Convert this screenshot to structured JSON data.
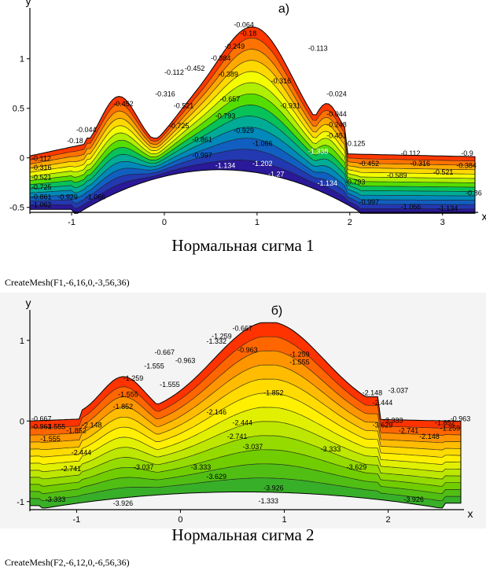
{
  "chart_data": [
    {
      "type": "heatmap",
      "panel_label": "а)",
      "title": "Нормальная сигма 1",
      "xlabel": "x",
      "ylabel": "y",
      "xlim": [
        -1.45,
        3.35
      ],
      "ylim": [
        -0.55,
        1.45
      ],
      "xticks": [
        -1,
        0,
        1,
        2,
        3
      ],
      "yticks": [
        -0.5,
        0,
        0.5,
        1
      ],
      "ytick_labels": [
        "-0.5",
        "0",
        "0.5",
        "1"
      ],
      "color_low": "#2a0a8a",
      "color_high": "#ff1a00",
      "value_range": [
        -1.338,
        0.024
      ],
      "contour_labels": [
        {
          "text": "-0.064",
          "x": 0.75,
          "y": 1.32
        },
        {
          "text": "-0.18",
          "x": 0.82,
          "y": 1.23
        },
        {
          "text": "-0.249",
          "x": 0.65,
          "y": 1.1
        },
        {
          "text": "-0.384",
          "x": 0.5,
          "y": 0.98
        },
        {
          "text": "-0.452",
          "x": 0.22,
          "y": 0.88
        },
        {
          "text": "-0.112",
          "x": 0.0,
          "y": 0.84
        },
        {
          "text": "-0.389",
          "x": 0.58,
          "y": 0.82
        },
        {
          "text": "-0.113",
          "x": 1.55,
          "y": 1.08
        },
        {
          "text": "-0.316",
          "x": 1.15,
          "y": 0.75
        },
        {
          "text": "-0.316",
          "x": -0.1,
          "y": 0.62
        },
        {
          "text": "-0.657",
          "x": 0.6,
          "y": 0.57
        },
        {
          "text": "-0.521",
          "x": 0.1,
          "y": 0.5
        },
        {
          "text": "-0.931",
          "x": 1.25,
          "y": 0.5
        },
        {
          "text": "-0.024",
          "x": 1.75,
          "y": 0.62
        },
        {
          "text": "-0.452",
          "x": -0.55,
          "y": 0.52
        },
        {
          "text": "-0.793",
          "x": 0.55,
          "y": 0.4
        },
        {
          "text": "-0.725",
          "x": 0.05,
          "y": 0.3
        },
        {
          "text": "-0.044",
          "x": 1.75,
          "y": 0.42
        },
        {
          "text": "-0.248",
          "x": 1.75,
          "y": 0.31
        },
        {
          "text": "-0.929",
          "x": 0.75,
          "y": 0.25
        },
        {
          "text": "-0.861",
          "x": 0.3,
          "y": 0.16
        },
        {
          "text": "-0.044",
          "x": -0.95,
          "y": 0.26
        },
        {
          "text": "-0.18",
          "x": -1.05,
          "y": 0.15
        },
        {
          "text": "-1.066",
          "x": 0.95,
          "y": 0.12
        },
        {
          "text": "-0.451",
          "x": 1.75,
          "y": 0.2
        },
        {
          "text": "-0.997",
          "x": 0.3,
          "y": 0.0
        },
        {
          "text": "-1.338",
          "x": 1.55,
          "y": 0.04
        },
        {
          "text": "-0.125",
          "x": 1.95,
          "y": 0.12
        },
        {
          "text": "-1.134",
          "x": 0.55,
          "y": -0.1
        },
        {
          "text": "-1.202",
          "x": 0.95,
          "y": -0.08
        },
        {
          "text": "-1.27",
          "x": 1.12,
          "y": -0.19
        },
        {
          "text": "-1.134",
          "x": 1.65,
          "y": -0.28
        },
        {
          "text": "-0.112",
          "x": -1.45,
          "y": -0.03
        },
        {
          "text": "-0.316",
          "x": -1.45,
          "y": -0.12
        },
        {
          "text": "-0.521",
          "x": -1.45,
          "y": -0.22
        },
        {
          "text": "-0.725",
          "x": -1.45,
          "y": -0.32
        },
        {
          "text": "-0.861",
          "x": -1.45,
          "y": -0.42
        },
        {
          "text": "-1.062",
          "x": -1.45,
          "y": -0.5
        },
        {
          "text": "-0.929",
          "x": -1.15,
          "y": -0.42
        },
        {
          "text": "-1.066",
          "x": -0.85,
          "y": -0.42
        },
        {
          "text": "-0.112",
          "x": 2.55,
          "y": 0.02
        },
        {
          "text": "-0.316",
          "x": 2.65,
          "y": -0.08
        },
        {
          "text": "-0.452",
          "x": 2.1,
          "y": -0.08
        },
        {
          "text": "-0.521",
          "x": 2.9,
          "y": -0.17
        },
        {
          "text": "-0.589",
          "x": 2.4,
          "y": -0.2
        },
        {
          "text": "-0.793",
          "x": 1.95,
          "y": -0.27
        },
        {
          "text": "-0.384",
          "x": 3.15,
          "y": -0.1
        },
        {
          "text": "-0.9",
          "x": 3.2,
          "y": 0.02
        },
        {
          "text": "-0.997",
          "x": 2.1,
          "y": -0.47
        },
        {
          "text": "-1.066",
          "x": 2.55,
          "y": -0.52
        },
        {
          "text": "-1.134",
          "x": 2.95,
          "y": -0.56
        },
        {
          "text": "-0.86",
          "x": 3.25,
          "y": -0.38
        }
      ]
    },
    {
      "type": "heatmap",
      "panel_label": "б)",
      "title": "Нормальная  сигма 2",
      "xlabel": "x",
      "ylabel": "y",
      "xlim": [
        -1.45,
        2.7
      ],
      "ylim": [
        -1.1,
        1.3
      ],
      "xticks": [
        -1,
        0,
        1,
        2
      ],
      "yticks": [
        -1,
        0,
        1
      ],
      "ytick_labels": [
        "-1",
        "0",
        "1"
      ],
      "color_low": "#2ea82e",
      "color_high": "#ff1a00",
      "value_range": [
        -3.926,
        -0.667
      ],
      "contour_labels": [
        {
          "text": "-0.667",
          "x": 0.5,
          "y": 1.12
        },
        {
          "text": "-1.259",
          "x": 0.3,
          "y": 1.02
        },
        {
          "text": "-1.332",
          "x": 0.25,
          "y": 0.96
        },
        {
          "text": "-0.963",
          "x": 0.55,
          "y": 0.85
        },
        {
          "text": "-0.667",
          "x": -0.25,
          "y": 0.82
        },
        {
          "text": "-0.963",
          "x": -0.05,
          "y": 0.72
        },
        {
          "text": "-1.259",
          "x": 1.05,
          "y": 0.8
        },
        {
          "text": "-1.555",
          "x": 1.05,
          "y": 0.7
        },
        {
          "text": "-1.555",
          "x": -0.35,
          "y": 0.65
        },
        {
          "text": "-1.259",
          "x": -0.55,
          "y": 0.5
        },
        {
          "text": "-1.555",
          "x": -0.2,
          "y": 0.42
        },
        {
          "text": "-1.852",
          "x": 0.8,
          "y": 0.32
        },
        {
          "text": "-1.555",
          "x": -0.6,
          "y": 0.3
        },
        {
          "text": "-1.852",
          "x": -0.65,
          "y": 0.15
        },
        {
          "text": "-2.148",
          "x": 1.75,
          "y": 0.32
        },
        {
          "text": "-2.444",
          "x": 1.85,
          "y": 0.2
        },
        {
          "text": "-2.146",
          "x": 0.25,
          "y": 0.08
        },
        {
          "text": "-2.444",
          "x": 0.5,
          "y": -0.05
        },
        {
          "text": "-2.741",
          "x": 0.45,
          "y": -0.22
        },
        {
          "text": "-3.037",
          "x": 0.6,
          "y": -0.35
        },
        {
          "text": "-3.333",
          "x": 1.35,
          "y": -0.38
        },
        {
          "text": "-2.444",
          "x": -1.05,
          "y": -0.42
        },
        {
          "text": "-2.741",
          "x": -1.15,
          "y": -0.62
        },
        {
          "text": "-3.037",
          "x": -0.45,
          "y": -0.6
        },
        {
          "text": "-3.333",
          "x": 0.1,
          "y": -0.6
        },
        {
          "text": "-3.629",
          "x": 0.25,
          "y": -0.72
        },
        {
          "text": "-3.629",
          "x": 1.6,
          "y": -0.6
        },
        {
          "text": "-3.926",
          "x": 0.8,
          "y": -0.86
        },
        {
          "text": "-1.333",
          "x": 0.75,
          "y": -1.02
        },
        {
          "text": "-3.333",
          "x": -1.3,
          "y": -1.0
        },
        {
          "text": "-3.926",
          "x": -0.65,
          "y": -1.05
        },
        {
          "text": "-3.926",
          "x": 2.15,
          "y": -1.0
        },
        {
          "text": "-0.667",
          "x": -1.45,
          "y": 0.0
        },
        {
          "text": "-0.963",
          "x": -1.45,
          "y": -0.1
        },
        {
          "text": "-1.555",
          "x": -1.3,
          "y": -0.1
        },
        {
          "text": "-1.852",
          "x": -1.1,
          "y": -0.15
        },
        {
          "text": "-1.555",
          "x": -1.35,
          "y": -0.25
        },
        {
          "text": "-2.148",
          "x": -0.95,
          "y": -0.08
        },
        {
          "text": "-1.852",
          "x": 2.45,
          "y": -0.05
        },
        {
          "text": "-2.741",
          "x": 2.1,
          "y": -0.15
        },
        {
          "text": "-2.148",
          "x": 2.3,
          "y": -0.22
        },
        {
          "text": "-1.259",
          "x": 2.5,
          "y": -0.12
        },
        {
          "text": "-3.037",
          "x": 2.0,
          "y": 0.35
        },
        {
          "text": "-3.629",
          "x": 1.85,
          "y": -0.08
        },
        {
          "text": "-3.333",
          "x": 1.95,
          "y": -0.02
        },
        {
          "text": "-0.963",
          "x": 2.6,
          "y": 0.0
        }
      ]
    }
  ],
  "commands": {
    "mesh1": "CreateMesh(F1,-6,16,0,-3,56,36)",
    "mesh2": "CreateMesh(F2,-6,12,0,-6,56,36)"
  }
}
